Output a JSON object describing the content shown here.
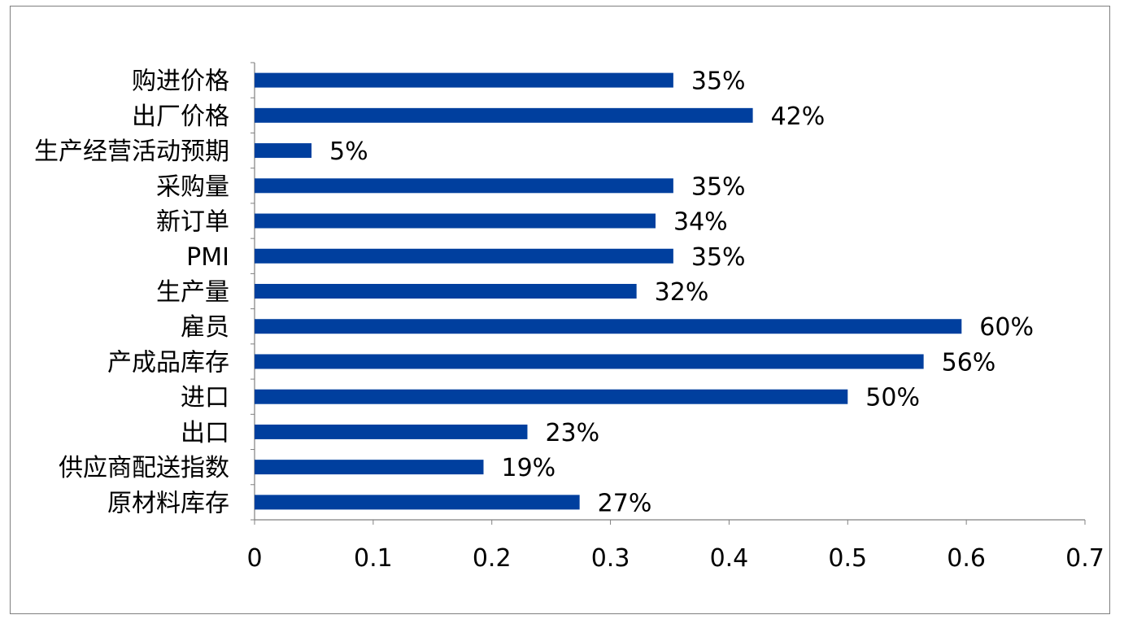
{
  "chart_data": {
    "type": "bar",
    "orientation": "horizontal",
    "categories": [
      "购进价格",
      "出厂价格",
      "生产经营活动预期",
      "采购量",
      "新订单",
      "PMI",
      "生产量",
      "雇员",
      "产成品库存",
      "进口",
      "出口",
      "供应商配送指数",
      "原材料库存"
    ],
    "values": [
      0.353,
      0.42,
      0.048,
      0.353,
      0.338,
      0.353,
      0.322,
      0.596,
      0.564,
      0.5,
      0.23,
      0.193,
      0.274
    ],
    "data_labels": [
      "35%",
      "42%",
      "5%",
      "35%",
      "34%",
      "35%",
      "32%",
      "60%",
      "56%",
      "50%",
      "23%",
      "19%",
      "27%"
    ],
    "xlim": [
      0,
      0.7
    ],
    "x_ticks": [
      "0",
      "0.1",
      "0.2",
      "0.3",
      "0.4",
      "0.5",
      "0.6",
      "0.7"
    ],
    "x_tick_values": [
      0,
      0.1,
      0.2,
      0.3,
      0.4,
      0.5,
      0.6,
      0.7
    ],
    "title": "",
    "xlabel": "",
    "ylabel": "",
    "grid": false,
    "legend": "none",
    "bar_color": "#003f9e",
    "axis_color": "#808080",
    "border_color": "#7f7f7f"
  }
}
